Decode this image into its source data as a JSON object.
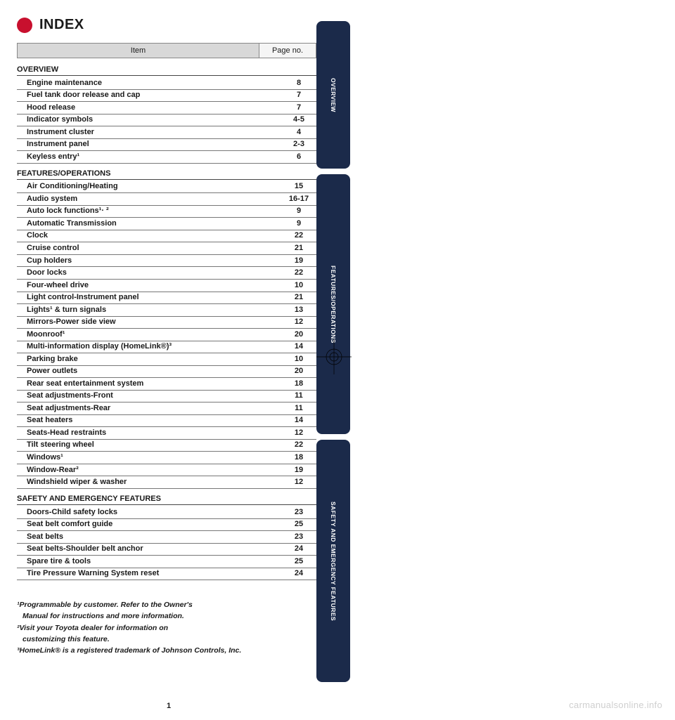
{
  "title": "INDEX",
  "tableHeader": {
    "item": "Item",
    "page": "Page no."
  },
  "tabs": [
    "OVERVIEW",
    "FEATURES/OPERATIONS",
    "SAFETY AND EMERGENCY FEATURES"
  ],
  "sections": [
    {
      "heading": "OVERVIEW",
      "rows": [
        {
          "item": "Engine maintenance",
          "page": "8"
        },
        {
          "item": "Fuel tank door release and cap",
          "page": "7"
        },
        {
          "item": "Hood release",
          "page": "7"
        },
        {
          "item": "Indicator symbols",
          "page": "4-5"
        },
        {
          "item": "Instrument cluster",
          "page": "4"
        },
        {
          "item": "Instrument panel",
          "page": "2-3"
        },
        {
          "item": "Keyless entry¹",
          "page": "6"
        }
      ]
    },
    {
      "heading": "FEATURES/OPERATIONS",
      "rows": [
        {
          "item": "Air Conditioning/Heating",
          "page": "15"
        },
        {
          "item": "Audio system",
          "page": "16-17"
        },
        {
          "item": "Auto lock functions¹· ²",
          "page": "9"
        },
        {
          "item": "Automatic Transmission",
          "page": "9"
        },
        {
          "item": "Clock",
          "page": "22"
        },
        {
          "item": "Cruise control",
          "page": "21"
        },
        {
          "item": "Cup holders",
          "page": "19"
        },
        {
          "item": "Door locks",
          "page": "22"
        },
        {
          "item": "Four-wheel drive",
          "page": "10"
        },
        {
          "item": "Light control-Instrument panel",
          "page": "21"
        },
        {
          "item": "Lights¹ & turn signals",
          "page": "13"
        },
        {
          "item": "Mirrors-Power side view",
          "page": "12"
        },
        {
          "item": "Moonroof¹",
          "page": "20"
        },
        {
          "item": "Multi-information display (HomeLink®)³",
          "page": "14"
        },
        {
          "item": "Parking brake",
          "page": "10"
        },
        {
          "item": "Power outlets",
          "page": "20"
        },
        {
          "item": "Rear seat entertainment system",
          "page": "18"
        },
        {
          "item": "Seat adjustments-Front",
          "page": "11"
        },
        {
          "item": "Seat adjustments-Rear",
          "page": "11"
        },
        {
          "item": "Seat heaters",
          "page": "14"
        },
        {
          "item": "Seats-Head restraints",
          "page": "12"
        },
        {
          "item": "Tilt steering wheel",
          "page": "22"
        },
        {
          "item": "Windows¹",
          "page": "18"
        },
        {
          "item": "Window-Rear²",
          "page": "19"
        },
        {
          "item": "Windshield wiper & washer",
          "page": "12"
        }
      ]
    },
    {
      "heading": "SAFETY AND EMERGENCY FEATURES",
      "rows": [
        {
          "item": "Doors-Child safety locks",
          "page": "23"
        },
        {
          "item": "Seat belt comfort guide",
          "page": "25"
        },
        {
          "item": "Seat belts",
          "page": "23"
        },
        {
          "item": "Seat belts-Shoulder belt anchor",
          "page": "24"
        },
        {
          "item": "Spare tire & tools",
          "page": "25"
        },
        {
          "item": "Tire Pressure Warning System reset",
          "page": "24"
        }
      ]
    }
  ],
  "footnotes": [
    "¹Programmable by customer. Refer to the Owner's",
    "  Manual for instructions and more information.",
    "²Visit your Toyota dealer for information on",
    "  customizing this feature.",
    "³HomeLink® is a registered trademark of Johnson Controls, Inc."
  ],
  "pageNumber": "1",
  "watermark": "carmanualsonline.info",
  "colors": {
    "red": "#c8102e",
    "tabBg": "#1b2a4a",
    "headerGray": "#d8d8d8",
    "headerLight": "#f5f5f5",
    "watermark": "#cfcfcf"
  }
}
